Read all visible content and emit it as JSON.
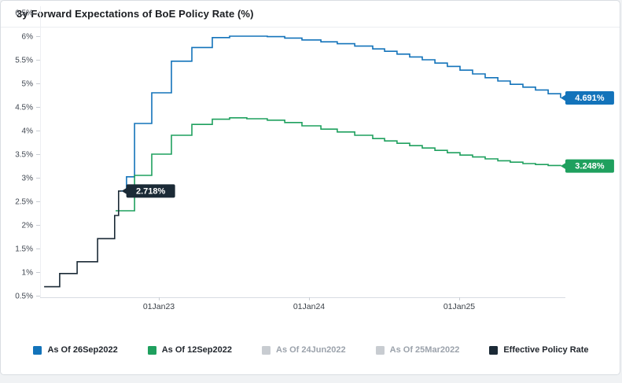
{
  "title": "3y Forward Expectations of BoE Policy Rate (%)",
  "chart_data": {
    "type": "line",
    "step": true,
    "title": "3y Forward Expectations of BoE Policy Rate (%)",
    "xlabel": "",
    "ylabel": "",
    "grid": false,
    "legend_position": "bottom",
    "xlim": [
      2022.21,
      2025.72
    ],
    "ylim": [
      0.5,
      6.6
    ],
    "x_ticks": [
      {
        "pos": 2023.0,
        "label": "01Jan23"
      },
      {
        "pos": 2024.0,
        "label": "01Jan24"
      },
      {
        "pos": 2025.0,
        "label": "01Jan25"
      }
    ],
    "y_ticks": [
      {
        "v": 0.5,
        "label": "0.5%"
      },
      {
        "v": 1.0,
        "label": "1%"
      },
      {
        "v": 1.5,
        "label": "1.5%"
      },
      {
        "v": 2.0,
        "label": "2%"
      },
      {
        "v": 2.5,
        "label": "2.5%"
      },
      {
        "v": 3.0,
        "label": "3%"
      },
      {
        "v": 3.5,
        "label": "3.5%"
      },
      {
        "v": 4.0,
        "label": "4%"
      },
      {
        "v": 4.5,
        "label": "4.5%"
      },
      {
        "v": 5.0,
        "label": "5%"
      },
      {
        "v": 5.5,
        "label": "5.5%"
      },
      {
        "v": 6.0,
        "label": "6%"
      },
      {
        "v": 6.5,
        "label": "6.5%"
      }
    ],
    "series": [
      {
        "name": "As Of 26Sep2022",
        "color": "#1373ba",
        "active": true,
        "end_label": "4.691%",
        "end_x": 2025.675,
        "points": [
          [
            2022.749,
            2.72
          ],
          [
            2022.785,
            3.02
          ],
          [
            2022.838,
            4.15
          ],
          [
            2022.953,
            4.8
          ],
          [
            2023.084,
            5.47
          ],
          [
            2023.22,
            5.76
          ],
          [
            2023.356,
            5.97
          ],
          [
            2023.471,
            6.0
          ],
          [
            2023.586,
            6.0
          ],
          [
            2023.722,
            5.99
          ],
          [
            2023.838,
            5.96
          ],
          [
            2023.953,
            5.92
          ],
          [
            2024.079,
            5.88
          ],
          [
            2024.188,
            5.84
          ],
          [
            2024.304,
            5.79
          ],
          [
            2024.424,
            5.73
          ],
          [
            2024.503,
            5.68
          ],
          [
            2024.586,
            5.62
          ],
          [
            2024.67,
            5.56
          ],
          [
            2024.754,
            5.5
          ],
          [
            2024.838,
            5.43
          ],
          [
            2024.921,
            5.36
          ],
          [
            2025.005,
            5.28
          ],
          [
            2025.089,
            5.2
          ],
          [
            2025.173,
            5.12
          ],
          [
            2025.257,
            5.05
          ],
          [
            2025.34,
            4.98
          ],
          [
            2025.424,
            4.92
          ],
          [
            2025.508,
            4.86
          ],
          [
            2025.592,
            4.78
          ],
          [
            2025.675,
            4.691
          ]
        ]
      },
      {
        "name": "As Of 12Sep2022",
        "color": "#1fa05e",
        "active": true,
        "end_label": "3.248%",
        "end_x": 2025.675,
        "points": [
          [
            2022.712,
            2.3
          ],
          [
            2022.838,
            3.05
          ],
          [
            2022.953,
            3.5
          ],
          [
            2023.084,
            3.9
          ],
          [
            2023.22,
            4.13
          ],
          [
            2023.356,
            4.24
          ],
          [
            2023.471,
            4.27
          ],
          [
            2023.586,
            4.25
          ],
          [
            2023.722,
            4.22
          ],
          [
            2023.838,
            4.17
          ],
          [
            2023.953,
            4.1
          ],
          [
            2024.079,
            4.03
          ],
          [
            2024.188,
            3.97
          ],
          [
            2024.304,
            3.9
          ],
          [
            2024.424,
            3.83
          ],
          [
            2024.503,
            3.78
          ],
          [
            2024.586,
            3.73
          ],
          [
            2024.67,
            3.68
          ],
          [
            2024.754,
            3.63
          ],
          [
            2024.838,
            3.58
          ],
          [
            2024.921,
            3.53
          ],
          [
            2025.005,
            3.48
          ],
          [
            2025.089,
            3.44
          ],
          [
            2025.173,
            3.4
          ],
          [
            2025.257,
            3.36
          ],
          [
            2025.34,
            3.33
          ],
          [
            2025.424,
            3.3
          ],
          [
            2025.508,
            3.28
          ],
          [
            2025.592,
            3.26
          ],
          [
            2025.675,
            3.248
          ]
        ]
      },
      {
        "name": "As Of 24Jun2022",
        "color": "#c8ccd1",
        "active": false
      },
      {
        "name": "As Of 25Mar2022",
        "color": "#c8ccd1",
        "active": false
      },
      {
        "name": "Effective Policy Rate",
        "color": "#1b2a36",
        "active": true,
        "end_label": "2.718%",
        "end_x": 2022.752,
        "points": [
          [
            2022.236,
            0.69
          ],
          [
            2022.34,
            0.97
          ],
          [
            2022.456,
            1.22
          ],
          [
            2022.592,
            1.71
          ],
          [
            2022.706,
            2.2
          ],
          [
            2022.732,
            2.718
          ]
        ]
      }
    ]
  }
}
